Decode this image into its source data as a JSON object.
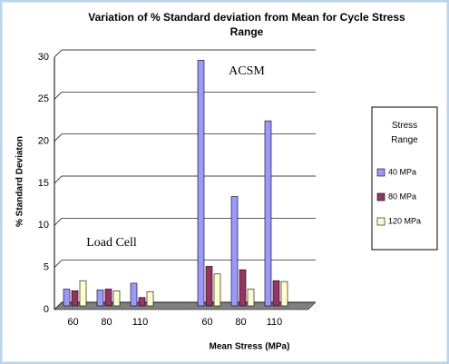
{
  "chart_data": {
    "type": "bar",
    "title": "Variation of % Standard deviation from Mean for Cycle Stress Range",
    "y_label": "% Standard Deviaton",
    "x_label": "Mean Stress (MPa)",
    "annotations": [
      "Load Cell",
      "ACSM"
    ],
    "legend_title": "Stress Range",
    "categories": [
      "60",
      "80",
      "110",
      null,
      "60",
      "80",
      "110"
    ],
    "series": [
      {
        "name": "40 MPa",
        "color": "#9999ff",
        "values": [
          2.0,
          1.9,
          2.7,
          null,
          29.2,
          13.0,
          22.0
        ]
      },
      {
        "name": "80 MPa",
        "color": "#993366",
        "values": [
          1.8,
          2.0,
          1.0,
          null,
          4.7,
          4.3,
          3.0
        ]
      },
      {
        "name": "120 MPa",
        "color": "#ffffcc",
        "values": [
          3.0,
          1.8,
          1.7,
          null,
          3.8,
          2.0,
          2.9
        ]
      }
    ],
    "ylim": [
      0,
      30
    ],
    "yticks": [
      0,
      5,
      10,
      15,
      20,
      25,
      30
    ],
    "grid": true,
    "legend": "right"
  }
}
